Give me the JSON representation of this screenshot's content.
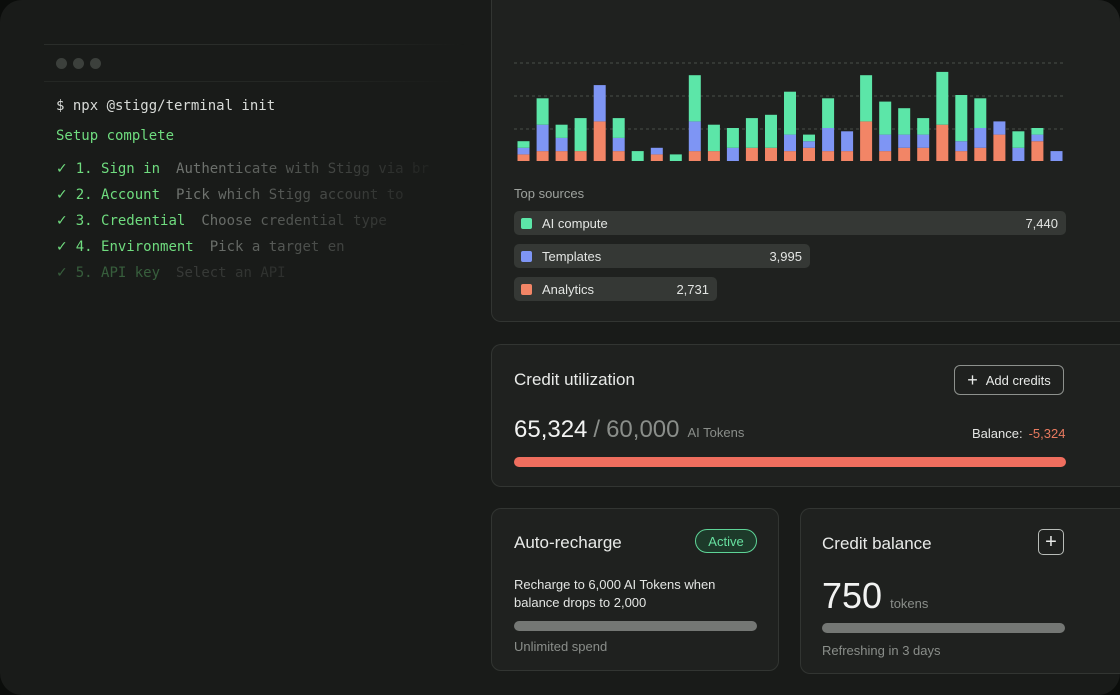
{
  "terminal": {
    "command": "$ npx @stigg/terminal init",
    "status": "Setup complete",
    "steps": [
      {
        "check": "✓",
        "label": "1. Sign in",
        "desc": "Authenticate with Stigg via br"
      },
      {
        "check": "✓",
        "label": "2. Account",
        "desc": "Pick which Stigg account to"
      },
      {
        "check": "✓",
        "label": "3. Credential",
        "desc": "Choose credential type"
      },
      {
        "check": "✓",
        "label": "4. Environment",
        "desc": "Pick a target en"
      },
      {
        "check": "✓",
        "label": "5. API key",
        "desc": "Select an API"
      }
    ]
  },
  "colors": {
    "ai_compute": "#5ce6a8",
    "templates": "#7e95f4",
    "analytics": "#f28566",
    "negative": "#e87a5f",
    "utilization_bar": "#ef6e5e",
    "active_badge": "#5ed497"
  },
  "chart_data": {
    "type": "bar",
    "stacked": true,
    "grid": true,
    "series": [
      {
        "name": "AI compute",
        "color": "#5ce6a8",
        "values": [
          2,
          8,
          4,
          10,
          0,
          6,
          3,
          0,
          2,
          14,
          8,
          6,
          9,
          10,
          13,
          2,
          9,
          0,
          14,
          10,
          8,
          5,
          16,
          14,
          9,
          0,
          5,
          2,
          0
        ]
      },
      {
        "name": "Templates",
        "color": "#7e95f4",
        "values": [
          2,
          8,
          4,
          0,
          11,
          4,
          0,
          2,
          0,
          9,
          0,
          4,
          0,
          0,
          5,
          2,
          7,
          6,
          0,
          5,
          4,
          4,
          0,
          3,
          6,
          4,
          4,
          2,
          3
        ]
      },
      {
        "name": "Analytics",
        "color": "#f28566",
        "values": [
          2,
          3,
          3,
          3,
          12,
          3,
          0,
          2,
          0,
          3,
          3,
          0,
          4,
          4,
          3,
          4,
          3,
          3,
          12,
          3,
          4,
          4,
          11,
          3,
          4,
          8,
          0,
          6,
          0
        ]
      }
    ],
    "ylim": [
      0,
      35
    ]
  },
  "top_sources": {
    "title": "Top sources",
    "items": [
      {
        "name": "AI compute",
        "value": "7,440",
        "color": "#5ce6a8",
        "share": 1.0
      },
      {
        "name": "Templates",
        "value": "3,995",
        "color": "#7e95f4",
        "share": 0.537
      },
      {
        "name": "Analytics",
        "value": "2,731",
        "color": "#f28566",
        "share": 0.367
      }
    ]
  },
  "credit_utilization": {
    "title": "Credit utilization",
    "add_label": "Add credits",
    "used": "65,324",
    "separator": "/",
    "limit": "60,000",
    "unit": "AI Tokens",
    "balance_label": "Balance:",
    "balance_value": "-5,324",
    "utilization": 1.0
  },
  "auto_recharge": {
    "title": "Auto-recharge",
    "status": "Active",
    "description": "Recharge to 6,000 AI Tokens when balance drops to 2,000",
    "spend_label": "Unlimited spend",
    "spend_level": 1.0
  },
  "credit_balance": {
    "title": "Credit balance",
    "add_icon": "plus-icon",
    "amount": "750",
    "unit": "tokens",
    "refresh_text": "Refreshing in 3 days",
    "bar_level": 1.0
  }
}
